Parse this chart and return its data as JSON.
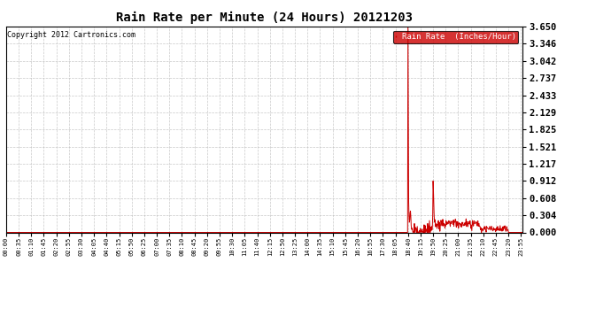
{
  "title": "Rain Rate per Minute (24 Hours) 20121203",
  "copyright": "Copyright 2012 Cartronics.com",
  "legend_label": "Rain Rate  (Inches/Hour)",
  "line_color": "#cc0000",
  "legend_bg": "#cc0000",
  "legend_text_color": "#ffffff",
  "background_color": "#ffffff",
  "plot_bg": "#ffffff",
  "grid_color": "#bbbbbb",
  "yticks": [
    0.0,
    0.304,
    0.608,
    0.912,
    1.217,
    1.521,
    1.825,
    2.129,
    2.433,
    2.737,
    3.042,
    3.346,
    3.65
  ],
  "ylim": [
    0.0,
    3.65
  ],
  "total_minutes": 1440,
  "spike_minute": 1120,
  "spike_value": 3.65,
  "second_spike_minute": 1190,
  "second_spike_value": 0.912,
  "tick_interval": 35
}
